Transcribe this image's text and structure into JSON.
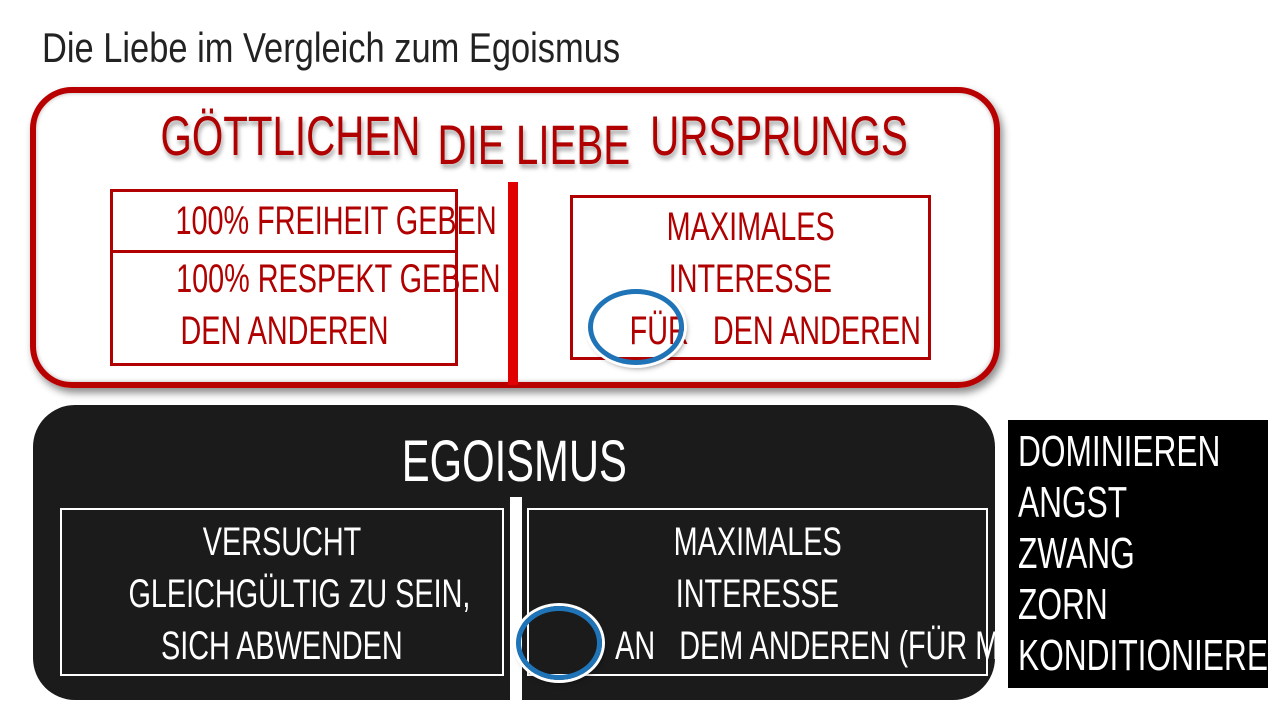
{
  "title": "Die Liebe im Vergleich zum Egoismus",
  "love": {
    "heading_left": "GÖTTLICHEN",
    "heading_center": "DIE LIEBE",
    "heading_right": "URSPRUNGS",
    "left_box": {
      "row1": "100% FREIHEIT GEBEN",
      "row2_line1": "100% RESPEKT GEBEN",
      "row2_line2": "DEN ANDEREN"
    },
    "right_box": {
      "line1": "MAXIMALES",
      "line2": "INTERESSE",
      "highlight": "FÜR",
      "line3_rest": "DEN ANDEREN"
    },
    "color": "#b00000"
  },
  "egoism": {
    "heading": "EGOISMUS",
    "left_box": {
      "line1": "VERSUCHT",
      "line2": "GLEICHGÜLTIG ZU SEIN,",
      "line3": "SICH ABWENDEN"
    },
    "right_box": {
      "line1": "MAXIMALES",
      "line2": "INTERESSE",
      "highlight": "AN",
      "line3_rest": "DEM ANDEREN (FÜR MICH)"
    }
  },
  "side_list": [
    "DOMINIEREN",
    "ANGST",
    "ZWANG",
    "ZORN",
    "KONDITIONIEREN"
  ],
  "highlight_color": "#1f73b7"
}
